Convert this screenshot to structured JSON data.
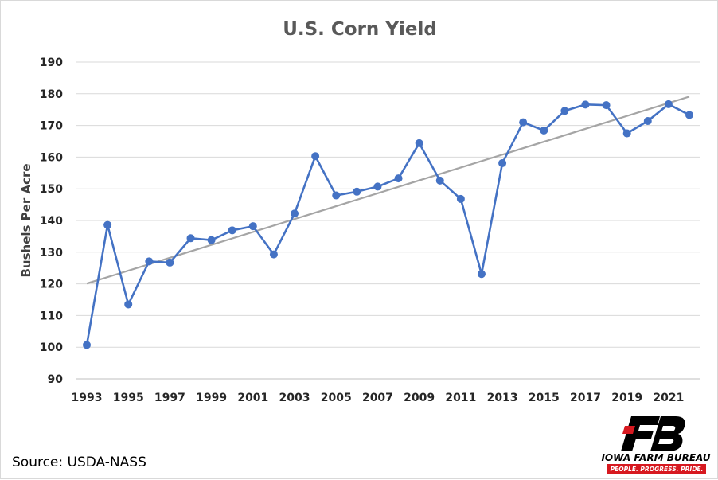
{
  "chart_data": {
    "type": "line",
    "title": "U.S. Corn Yield",
    "xlabel": "",
    "ylabel": "Bushels Per Acre",
    "ylim": [
      90,
      190
    ],
    "yticks": [
      90,
      100,
      110,
      120,
      130,
      140,
      150,
      160,
      170,
      180,
      190
    ],
    "xticks": [
      1993,
      1995,
      1997,
      1999,
      2001,
      2003,
      2005,
      2007,
      2009,
      2011,
      2013,
      2015,
      2017,
      2019,
      2021
    ],
    "x": [
      1993,
      1994,
      1995,
      1996,
      1997,
      1998,
      1999,
      2000,
      2001,
      2002,
      2003,
      2004,
      2005,
      2006,
      2007,
      2008,
      2009,
      2010,
      2011,
      2012,
      2013,
      2014,
      2015,
      2016,
      2017,
      2018,
      2019,
      2020,
      2021,
      2022
    ],
    "series": [
      {
        "color": "#4472c4",
        "values": [
          100.7,
          138.6,
          113.5,
          127.1,
          126.7,
          134.4,
          133.8,
          136.9,
          138.2,
          129.3,
          142.2,
          160.3,
          147.9,
          149.1,
          150.7,
          153.3,
          164.4,
          152.6,
          146.8,
          123.1,
          158.1,
          171.0,
          168.4,
          174.6,
          176.6,
          176.4,
          167.5,
          171.4,
          176.7,
          173.3
        ]
      }
    ],
    "trendline": {
      "color": "#a5a5a5",
      "start": [
        1993,
        120.1
      ],
      "end": [
        2022,
        179.1
      ]
    },
    "grid": true,
    "legend": "none"
  },
  "source": "Source: USDA-NASS",
  "logo": {
    "name": "IOWA FARM BUREAU",
    "tagline": "PEOPLE. PROGRESS. PRIDE."
  }
}
